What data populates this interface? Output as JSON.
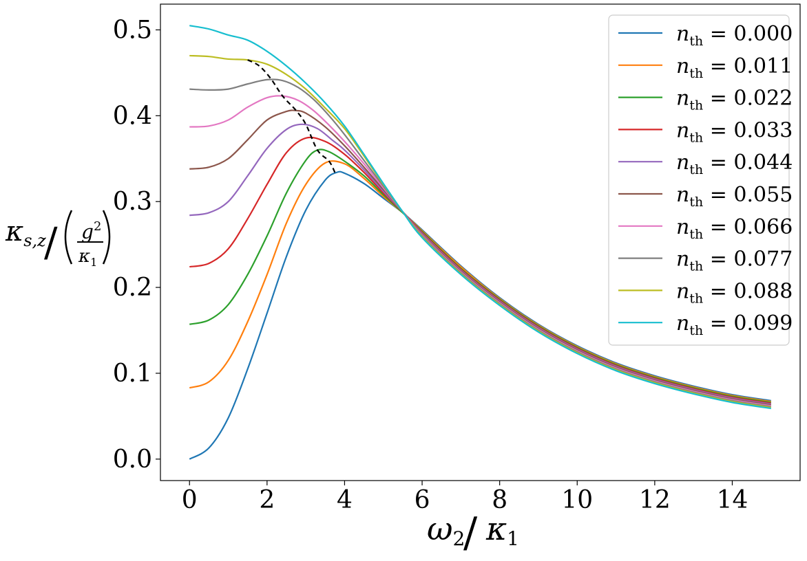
{
  "chart_data": {
    "type": "line",
    "xlabel": {
      "main": "ω",
      "sub": "2",
      "slash": "/",
      "den": "κ",
      "den_sub": "1"
    },
    "ylabel": {
      "main": "κ",
      "sub": "s,z",
      "slash": "/",
      "num": "g",
      "num_sup": "2",
      "den": "κ",
      "den_sub": "1"
    },
    "xlim": [
      -0.75,
      15.75
    ],
    "ylim": [
      -0.025,
      0.53
    ],
    "xticks": [
      0,
      2,
      4,
      6,
      8,
      10,
      12,
      14
    ],
    "yticks": [
      0.0,
      0.1,
      0.2,
      0.3,
      0.4,
      0.5
    ],
    "xtick_labels": [
      "0",
      "2",
      "4",
      "6",
      "8",
      "10",
      "12",
      "14"
    ],
    "ytick_labels": [
      "0.0",
      "0.1",
      "0.2",
      "0.3",
      "0.4",
      "0.5"
    ],
    "legend_position": "top-right",
    "legend_prefix": "n",
    "legend_sub": "th",
    "series": [
      {
        "name": "0.000",
        "color": "#1f77b4",
        "x": [
          0,
          0.5,
          1.0,
          1.5,
          2.0,
          2.5,
          3.0,
          3.5,
          3.8,
          4.0,
          4.5,
          5.0,
          5.5,
          6.0,
          7.0,
          8.0,
          9.0,
          10.0,
          11.0,
          12.0,
          13.0,
          14.0,
          15.0
        ],
        "y": [
          0.0,
          0.013,
          0.048,
          0.105,
          0.17,
          0.236,
          0.29,
          0.325,
          0.334,
          0.333,
          0.321,
          0.304,
          0.287,
          0.267,
          0.225,
          0.188,
          0.157,
          0.132,
          0.112,
          0.097,
          0.085,
          0.075,
          0.068
        ]
      },
      {
        "name": "0.011",
        "color": "#ff7f0e",
        "x": [
          0,
          0.5,
          1.0,
          1.5,
          2.0,
          2.5,
          3.0,
          3.5,
          4.0,
          4.5,
          5.0,
          5.5,
          6.0,
          7.0,
          8.0,
          9.0,
          10.0,
          11.0,
          12.0,
          13.0,
          14.0,
          15.0
        ],
        "y": [
          0.083,
          0.09,
          0.115,
          0.16,
          0.215,
          0.275,
          0.32,
          0.345,
          0.344,
          0.327,
          0.306,
          0.287,
          0.266,
          0.224,
          0.187,
          0.156,
          0.131,
          0.111,
          0.096,
          0.084,
          0.074,
          0.067
        ]
      },
      {
        "name": "0.022",
        "color": "#2ca02c",
        "x": [
          0,
          0.5,
          1.0,
          1.5,
          2.0,
          2.5,
          3.0,
          3.3,
          3.6,
          4.0,
          4.5,
          5.0,
          5.5,
          6.0,
          7.0,
          8.0,
          9.0,
          10.0,
          11.0,
          12.0,
          13.0,
          14.0,
          15.0
        ],
        "y": [
          0.157,
          0.162,
          0.18,
          0.215,
          0.26,
          0.31,
          0.348,
          0.36,
          0.358,
          0.347,
          0.33,
          0.308,
          0.287,
          0.265,
          0.222,
          0.186,
          0.155,
          0.13,
          0.11,
          0.095,
          0.083,
          0.073,
          0.066
        ]
      },
      {
        "name": "0.033",
        "color": "#d62728",
        "x": [
          0,
          0.5,
          1.0,
          1.5,
          2.0,
          2.5,
          3.0,
          3.5,
          4.0,
          4.5,
          5.0,
          5.5,
          6.0,
          7.0,
          8.0,
          9.0,
          10.0,
          11.0,
          12.0,
          13.0,
          14.0,
          15.0
        ],
        "y": [
          0.224,
          0.228,
          0.245,
          0.28,
          0.32,
          0.357,
          0.374,
          0.37,
          0.355,
          0.334,
          0.31,
          0.288,
          0.264,
          0.221,
          0.185,
          0.154,
          0.129,
          0.109,
          0.094,
          0.082,
          0.072,
          0.065
        ]
      },
      {
        "name": "0.044",
        "color": "#9467bd",
        "x": [
          0,
          0.5,
          1.0,
          1.5,
          2.0,
          2.5,
          2.9,
          3.3,
          3.7,
          4.0,
          4.5,
          5.0,
          5.5,
          6.0,
          7.0,
          8.0,
          9.0,
          10.0,
          11.0,
          12.0,
          13.0,
          14.0,
          15.0
        ],
        "y": [
          0.284,
          0.287,
          0.3,
          0.33,
          0.362,
          0.384,
          0.39,
          0.385,
          0.371,
          0.36,
          0.337,
          0.312,
          0.288,
          0.263,
          0.22,
          0.184,
          0.153,
          0.128,
          0.108,
          0.093,
          0.081,
          0.071,
          0.064
        ]
      },
      {
        "name": "0.055",
        "color": "#8c564b",
        "x": [
          0,
          0.5,
          1.0,
          1.5,
          2.0,
          2.5,
          2.75,
          3.0,
          3.5,
          4.0,
          4.5,
          5.0,
          5.5,
          6.0,
          7.0,
          8.0,
          9.0,
          10.0,
          11.0,
          12.0,
          13.0,
          14.0,
          15.0
        ],
        "y": [
          0.338,
          0.34,
          0.35,
          0.372,
          0.395,
          0.405,
          0.406,
          0.403,
          0.387,
          0.365,
          0.34,
          0.314,
          0.288,
          0.262,
          0.219,
          0.183,
          0.152,
          0.127,
          0.107,
          0.092,
          0.08,
          0.07,
          0.063
        ]
      },
      {
        "name": "0.066",
        "color": "#e377c2",
        "x": [
          0,
          0.5,
          1.0,
          1.5,
          2.0,
          2.4,
          2.8,
          3.2,
          3.6,
          4.0,
          4.5,
          5.0,
          5.5,
          6.0,
          7.0,
          8.0,
          9.0,
          10.0,
          11.0,
          12.0,
          13.0,
          14.0,
          15.0
        ],
        "y": [
          0.387,
          0.388,
          0.395,
          0.41,
          0.421,
          0.423,
          0.418,
          0.406,
          0.389,
          0.37,
          0.344,
          0.316,
          0.288,
          0.261,
          0.218,
          0.182,
          0.151,
          0.126,
          0.106,
          0.091,
          0.079,
          0.069,
          0.062
        ]
      },
      {
        "name": "0.077",
        "color": "#7f7f7f",
        "x": [
          0,
          0.5,
          1.0,
          1.5,
          2.0,
          2.4,
          2.8,
          3.2,
          3.6,
          4.0,
          4.5,
          5.0,
          5.5,
          6.0,
          7.0,
          8.0,
          9.0,
          10.0,
          11.0,
          12.0,
          13.0,
          14.0,
          15.0
        ],
        "y": [
          0.431,
          0.43,
          0.431,
          0.437,
          0.442,
          0.441,
          0.433,
          0.419,
          0.4,
          0.378,
          0.348,
          0.318,
          0.288,
          0.26,
          0.217,
          0.181,
          0.15,
          0.125,
          0.105,
          0.09,
          0.078,
          0.068,
          0.061
        ]
      },
      {
        "name": "0.088",
        "color": "#bcbd22",
        "x": [
          0,
          0.5,
          1.0,
          1.5,
          2.0,
          2.5,
          3.0,
          3.5,
          4.0,
          4.5,
          5.0,
          5.5,
          6.0,
          7.0,
          8.0,
          9.0,
          10.0,
          11.0,
          12.0,
          13.0,
          14.0,
          15.0
        ],
        "y": [
          0.47,
          0.469,
          0.466,
          0.465,
          0.46,
          0.448,
          0.431,
          0.409,
          0.385,
          0.353,
          0.32,
          0.288,
          0.259,
          0.216,
          0.18,
          0.149,
          0.124,
          0.104,
          0.089,
          0.077,
          0.067,
          0.06
        ]
      },
      {
        "name": "0.099",
        "color": "#17becf",
        "x": [
          0,
          0.5,
          1.0,
          1.5,
          2.0,
          2.5,
          3.0,
          3.5,
          4.0,
          4.5,
          5.0,
          5.5,
          6.0,
          7.0,
          8.0,
          9.0,
          10.0,
          11.0,
          12.0,
          13.0,
          14.0,
          15.0
        ],
        "y": [
          0.505,
          0.501,
          0.494,
          0.488,
          0.475,
          0.458,
          0.438,
          0.415,
          0.388,
          0.355,
          0.321,
          0.288,
          0.258,
          0.215,
          0.179,
          0.148,
          0.123,
          0.103,
          0.088,
          0.076,
          0.066,
          0.059
        ]
      }
    ],
    "peak_curve": {
      "style": "dashed",
      "color": "#000000",
      "x": [
        1.5,
        1.8,
        2.1,
        2.4,
        2.75,
        3.0,
        3.3,
        3.6,
        3.75
      ],
      "y": [
        0.465,
        0.458,
        0.443,
        0.423,
        0.406,
        0.39,
        0.36,
        0.347,
        0.334
      ]
    }
  }
}
